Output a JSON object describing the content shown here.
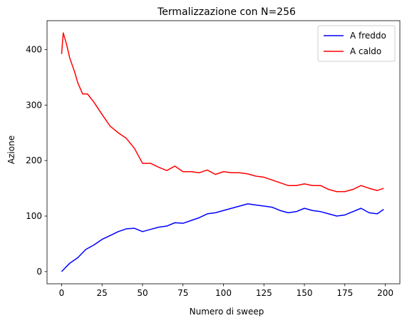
{
  "chart_data": {
    "type": "line",
    "title": "Termalizzazione con N=256",
    "xlabel": "Numero di sweep",
    "ylabel": "Azione",
    "xlim": [
      -9,
      209
    ],
    "ylim": [
      -22,
      452
    ],
    "xticks": [
      0,
      25,
      50,
      75,
      100,
      125,
      150,
      175,
      200
    ],
    "yticks": [
      0,
      100,
      200,
      300,
      400
    ],
    "grid": false,
    "legend_position": "top-right",
    "series": [
      {
        "name": "A freddo",
        "color": "#0000ff",
        "x": [
          0,
          5,
          10,
          15,
          20,
          25,
          30,
          35,
          40,
          45,
          50,
          55,
          60,
          65,
          70,
          75,
          80,
          85,
          90,
          95,
          100,
          105,
          110,
          115,
          120,
          125,
          130,
          135,
          140,
          145,
          150,
          155,
          160,
          165,
          170,
          175,
          180,
          185,
          190,
          195,
          199
        ],
        "y": [
          0,
          15,
          25,
          40,
          48,
          58,
          65,
          72,
          77,
          78,
          72,
          76,
          80,
          82,
          88,
          87,
          92,
          97,
          104,
          106,
          110,
          114,
          118,
          122,
          120,
          118,
          116,
          110,
          106,
          108,
          114,
          110,
          108,
          104,
          100,
          102,
          108,
          114,
          106,
          104,
          112
        ]
      },
      {
        "name": "A caldo",
        "color": "#ff0000",
        "x": [
          0,
          1,
          3,
          5,
          8,
          10,
          13,
          16,
          20,
          25,
          30,
          35,
          40,
          45,
          50,
          55,
          60,
          65,
          70,
          75,
          80,
          85,
          90,
          95,
          100,
          105,
          110,
          115,
          120,
          125,
          130,
          135,
          140,
          145,
          150,
          155,
          160,
          165,
          170,
          175,
          180,
          185,
          190,
          195,
          199
        ],
        "y": [
          392,
          430,
          410,
          385,
          360,
          340,
          320,
          320,
          305,
          283,
          262,
          250,
          240,
          222,
          195,
          195,
          188,
          182,
          190,
          180,
          180,
          178,
          183,
          175,
          180,
          178,
          178,
          176,
          172,
          170,
          165,
          160,
          155,
          155,
          158,
          155,
          155,
          148,
          144,
          144,
          148,
          155,
          150,
          146,
          150
        ]
      }
    ]
  }
}
